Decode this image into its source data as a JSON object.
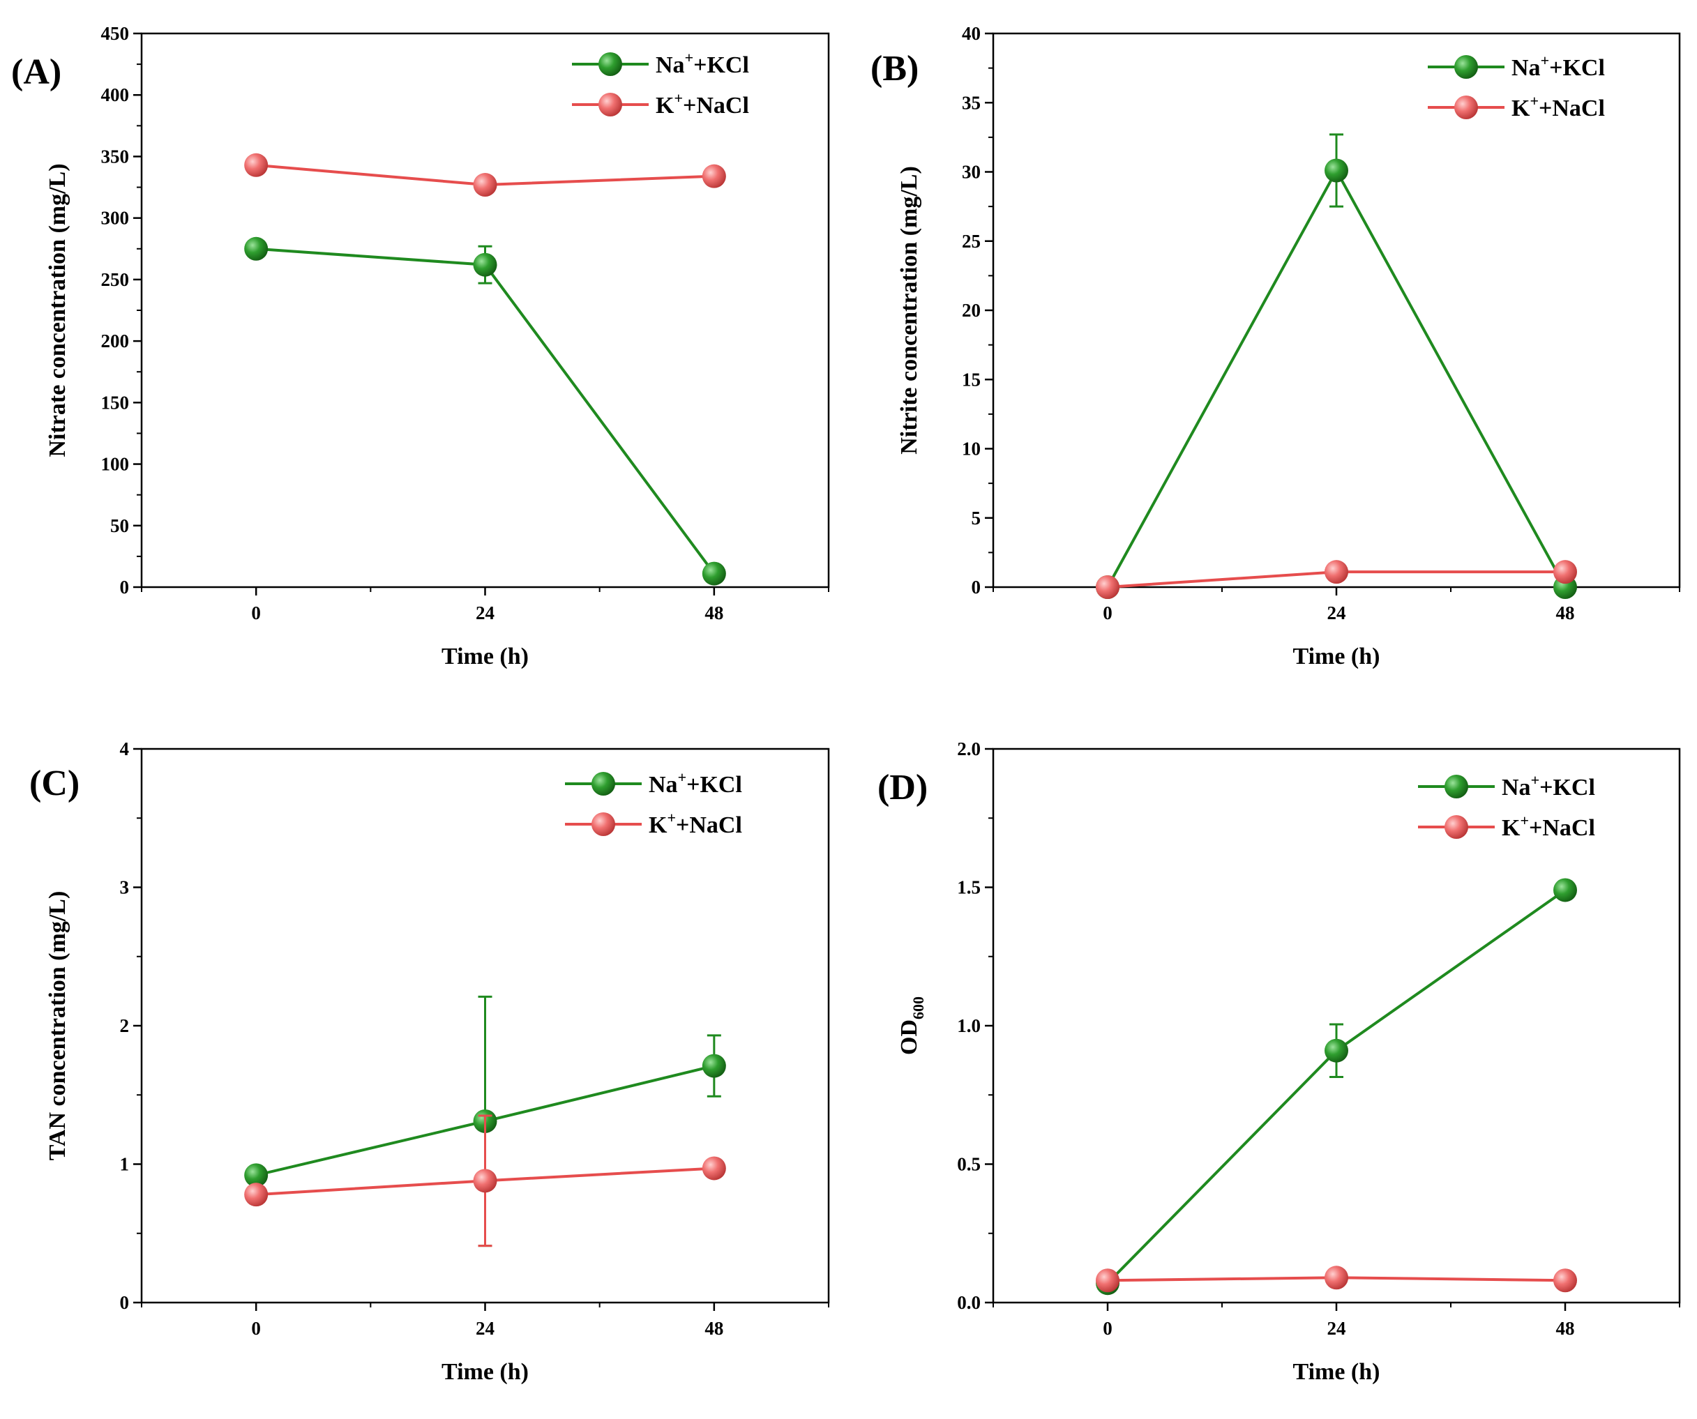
{
  "colors": {
    "green": "#1f8a1f",
    "red": "#e64d4d"
  },
  "chart_data": [
    {
      "type": "line",
      "panel_label": "(A)",
      "xlabel": "Time (h)",
      "ylabel": "Nitrate concentration (mg/L)",
      "ylabel_sub": "",
      "x": [
        0,
        24,
        48
      ],
      "xticks": [
        "0",
        "24",
        "48"
      ],
      "xlim": [
        -12,
        60
      ],
      "ylim": [
        0,
        450
      ],
      "yticks": [
        0,
        50,
        100,
        150,
        200,
        250,
        300,
        350,
        400,
        450
      ],
      "ytick_labels": [
        "0",
        "50",
        "100",
        "150",
        "200",
        "250",
        "300",
        "350",
        "400",
        "450"
      ],
      "legend": "top-right",
      "series": [
        {
          "name": "Na+KCl",
          "name_main": "Na",
          "name_sup": "+",
          "name_rest": "+KCl",
          "color": "green",
          "values": [
            275,
            262,
            11
          ],
          "errors": [
            0,
            15,
            0
          ]
        },
        {
          "name": "K+NaCl",
          "name_main": "K",
          "name_sup": "+",
          "name_rest": "+NaCl",
          "color": "red",
          "values": [
            343,
            327,
            334
          ],
          "errors": [
            0,
            0,
            0
          ]
        }
      ]
    },
    {
      "type": "line",
      "panel_label": "(B)",
      "xlabel": "Time (h)",
      "ylabel": "Nitrite concentration (mg/L)",
      "ylabel_sub": "",
      "x": [
        0,
        24,
        48
      ],
      "xticks": [
        "0",
        "24",
        "48"
      ],
      "xlim": [
        -12,
        60
      ],
      "ylim": [
        0,
        40
      ],
      "yticks": [
        0,
        5,
        10,
        15,
        20,
        25,
        30,
        35,
        40
      ],
      "ytick_labels": [
        "0",
        "5",
        "10",
        "15",
        "20",
        "25",
        "30",
        "35",
        "40"
      ],
      "legend": "top-right",
      "series": [
        {
          "name": "Na+KCl",
          "name_main": "Na",
          "name_sup": "+",
          "name_rest": "+KCl",
          "color": "green",
          "values": [
            0,
            30.1,
            0
          ],
          "errors": [
            0,
            2.6,
            0
          ]
        },
        {
          "name": "K+NaCl",
          "name_main": "K",
          "name_sup": "+",
          "name_rest": "+NaCl",
          "color": "red",
          "values": [
            0,
            1.1,
            1.1
          ],
          "errors": [
            0,
            0,
            0
          ]
        }
      ]
    },
    {
      "type": "line",
      "panel_label": "(C)",
      "xlabel": "Time (h)",
      "ylabel": "TAN concentration (mg/L)",
      "ylabel_sub": "",
      "x": [
        0,
        24,
        48
      ],
      "xticks": [
        "0",
        "24",
        "48"
      ],
      "xlim": [
        -12,
        60
      ],
      "ylim": [
        0,
        4
      ],
      "yticks": [
        0,
        1,
        2,
        3,
        4
      ],
      "ytick_labels": [
        "0",
        "1",
        "2",
        "3",
        "4"
      ],
      "legend": "top-right",
      "series": [
        {
          "name": "Na+KCl",
          "name_main": "Na",
          "name_sup": "+",
          "name_rest": "+KCl",
          "color": "green",
          "values": [
            0.92,
            1.31,
            1.71
          ],
          "errors": [
            0,
            0.9,
            0.22
          ]
        },
        {
          "name": "K+NaCl",
          "name_main": "K",
          "name_sup": "+",
          "name_rest": "+NaCl",
          "color": "red",
          "values": [
            0.78,
            0.88,
            0.97
          ],
          "errors": [
            0,
            0.47,
            0
          ]
        }
      ]
    },
    {
      "type": "line",
      "panel_label": "(D)",
      "xlabel": "Time (h)",
      "ylabel": "OD",
      "ylabel_sub": "600",
      "x": [
        0,
        24,
        48
      ],
      "xticks": [
        "0",
        "24",
        "48"
      ],
      "xlim": [
        -12,
        60
      ],
      "ylim": [
        0,
        2
      ],
      "yticks": [
        0,
        0.5,
        1,
        1.5,
        2
      ],
      "ytick_labels": [
        "0.0",
        "0.5",
        "1.0",
        "1.5",
        "2.0"
      ],
      "legend": "top-right",
      "series": [
        {
          "name": "Na+KCl",
          "name_main": "Na",
          "name_sup": "+",
          "name_rest": "+KCl",
          "color": "green",
          "values": [
            0.07,
            0.91,
            1.49
          ],
          "errors": [
            0,
            0.095,
            0
          ]
        },
        {
          "name": "K+NaCl",
          "name_main": "K",
          "name_sup": "+",
          "name_rest": "+NaCl",
          "color": "red",
          "values": [
            0.08,
            0.09,
            0.08
          ],
          "errors": [
            0,
            0,
            0
          ]
        }
      ]
    }
  ]
}
